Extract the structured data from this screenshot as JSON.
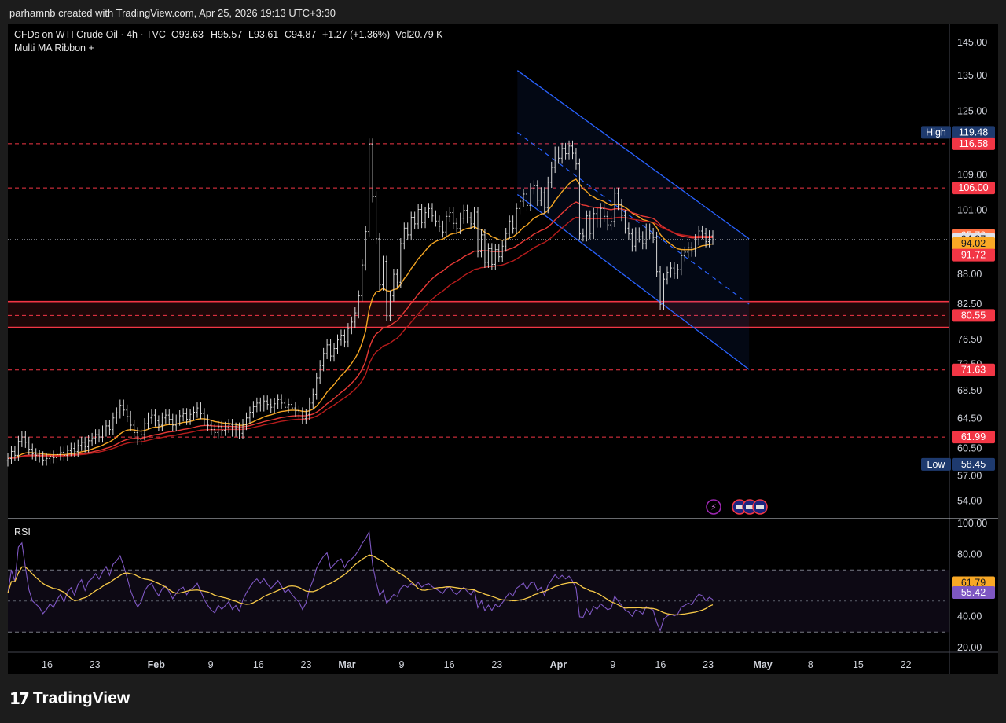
{
  "header": {
    "credit": "parhamnb created with TradingView.com, Apr 25, 2026 19:13 UTC+3:30"
  },
  "legend": {
    "symbol": "CFDs on WTI Crude Oil · 4h · TVC",
    "open": "O93.63",
    "high": "H95.57",
    "low": "L93.61",
    "close": "C94.87",
    "change": "+1.27 (+1.36%)",
    "volume": "Vol20.79 K",
    "indicator": "Multi MA Ribbon +"
  },
  "rsi_panel": {
    "title": "RSI"
  },
  "footer": {
    "brand": "TradingView"
  },
  "colors": {
    "background": "#000000",
    "frame": "#1c1c1c",
    "candle": "#d9d9d9",
    "ma_orange": "#f5a623",
    "ma_red": "#e53935",
    "ma_darkred": "#b71c1c",
    "channel": "#2962ff",
    "hline": "#f23645",
    "rsi": "#7e57c2",
    "rsi_ma": "#f7c948",
    "tag_red": "#f23645",
    "tag_blue": "#1e3a6e",
    "tag_orange": "#ff7043",
    "tag_yellow": "#f9a825"
  },
  "chart_data": {
    "type": "candlestick",
    "symbol": "CFDs on WTI Crude Oil",
    "interval": "4h",
    "price_axis": {
      "ticks": [
        "145.00",
        "135.00",
        "125.00",
        "109.00",
        "101.00",
        "88.00",
        "82.50",
        "76.50",
        "72.50",
        "68.50",
        "64.50",
        "60.50",
        "57.00",
        "54.00"
      ],
      "tick_values": [
        145,
        135,
        125,
        109,
        101,
        88,
        82.5,
        76.5,
        72.5,
        68.5,
        64.5,
        60.5,
        57,
        54
      ],
      "scale": "log"
    },
    "time_axis": {
      "labels": [
        "16",
        "23",
        "Feb",
        "9",
        "16",
        "23",
        "Mar",
        "9",
        "16",
        "23",
        "Apr",
        "9",
        "16",
        "23",
        "May",
        "8",
        "15",
        "22"
      ],
      "dates": [
        "2026-01-16",
        "2026-01-23",
        "2026-02-01",
        "2026-02-09",
        "2026-02-16",
        "2026-02-23",
        "2026-03-01",
        "2026-03-09",
        "2026-03-16",
        "2026-03-23",
        "2026-04-01",
        "2026-04-09",
        "2026-04-16",
        "2026-04-23",
        "2026-05-01",
        "2026-05-08",
        "2026-05-15",
        "2026-05-22"
      ],
      "bold": [
        "Feb",
        "Mar",
        "Apr",
        "May"
      ]
    },
    "price_tags": [
      {
        "label": "High",
        "value": "119.48",
        "style": "blue"
      },
      {
        "label": "",
        "value": "116.58",
        "style": "red"
      },
      {
        "label": "",
        "value": "106.00",
        "style": "red"
      },
      {
        "label": "",
        "value": "95.70",
        "style": "orange"
      },
      {
        "label": "",
        "value": "94.87",
        "style": "close"
      },
      {
        "label": "",
        "value": "94.02",
        "style": "yellow"
      },
      {
        "label": "",
        "value": "91.72",
        "style": "red"
      },
      {
        "label": "",
        "value": "80.55",
        "style": "red"
      },
      {
        "label": "",
        "value": "71.63",
        "style": "red"
      },
      {
        "label": "",
        "value": "61.99",
        "style": "red"
      },
      {
        "label": "Low",
        "value": "58.45",
        "style": "blue"
      }
    ],
    "horizontal_levels": [
      116.58,
      106.0,
      80.55,
      71.63,
      61.99
    ],
    "support_zone": [
      78.5,
      83.0
    ],
    "last_close": 94.87,
    "closes": [
      59.2,
      60.1,
      59.6,
      61.4,
      62.0,
      61.3,
      60.4,
      59.8,
      59.6,
      59.4,
      59.0,
      59.2,
      59.5,
      59.3,
      59.7,
      60.0,
      59.6,
      60.2,
      60.5,
      60.1,
      60.9,
      61.3,
      60.7,
      61.5,
      61.8,
      62.3,
      62.0,
      62.8,
      63.5,
      63.0,
      64.6,
      65.3,
      66.4,
      65.7,
      64.8,
      63.6,
      62.6,
      61.7,
      62.3,
      63.8,
      64.6,
      65.0,
      64.2,
      63.6,
      64.6,
      65.0,
      64.4,
      63.6,
      64.3,
      64.9,
      65.2,
      64.4,
      65.1,
      65.4,
      66.0,
      65.2,
      64.3,
      63.6,
      63.0,
      62.6,
      63.4,
      62.9,
      63.3,
      63.7,
      62.8,
      63.2,
      62.5,
      63.7,
      64.6,
      65.4,
      66.2,
      66.7,
      66.3,
      67.0,
      66.5,
      66.1,
      66.6,
      67.2,
      66.7,
      66.1,
      66.5,
      66.0,
      65.6,
      65.3,
      64.5,
      65.1,
      66.7,
      68.0,
      70.4,
      72.3,
      74.2,
      75.6,
      73.8,
      75.0,
      76.4,
      77.2,
      76.1,
      78.3,
      79.4,
      81.0,
      84.0,
      89.8,
      96.5,
      116.5,
      104.0,
      95.0,
      86.0,
      90.5,
      80.5,
      84.0,
      88.0,
      86.5,
      94.0,
      97.2,
      95.8,
      99.5,
      98.1,
      101.2,
      98.4,
      100.5,
      101.4,
      99.8,
      98.7,
      97.6,
      96.4,
      99.7,
      100.5,
      98.2,
      97.1,
      99.3,
      101.0,
      99.4,
      98.1,
      100.6,
      92.4,
      95.8,
      90.3,
      93.0,
      89.9,
      92.8,
      91.4,
      93.5,
      96.1,
      98.7,
      97.2,
      101.4,
      103.0,
      104.6,
      102.1,
      105.8,
      106.5,
      103.2,
      104.9,
      101.6,
      107.3,
      110.8,
      114.5,
      113.0,
      115.4,
      114.1,
      116.0,
      114.2,
      111.6,
      96.0,
      95.6,
      99.8,
      96.1,
      100.3,
      98.5,
      101.4,
      99.7,
      97.9,
      98.6,
      104.8,
      102.3,
      99.9,
      97.2,
      96.0,
      93.5,
      96.2,
      95.4,
      94.0,
      97.0,
      96.1,
      95.3,
      88.5,
      82.5,
      87.1,
      88.4,
      89.2,
      88.2,
      88.9,
      91.6,
      92.3,
      93.2,
      92.5,
      94.8,
      96.6,
      96.1,
      94.4,
      95.6,
      94.87
    ]
  },
  "rsi_data": {
    "ticks": [
      "100.00",
      "80.00",
      "60.00",
      "40.00",
      "20.00"
    ],
    "tick_values": [
      100,
      80,
      60,
      40,
      20
    ],
    "bands": [
      70,
      30
    ],
    "midline": 50,
    "tags": [
      {
        "value": "61.79",
        "style": "yellow"
      },
      {
        "value": "55.42",
        "style": "purple"
      }
    ]
  }
}
